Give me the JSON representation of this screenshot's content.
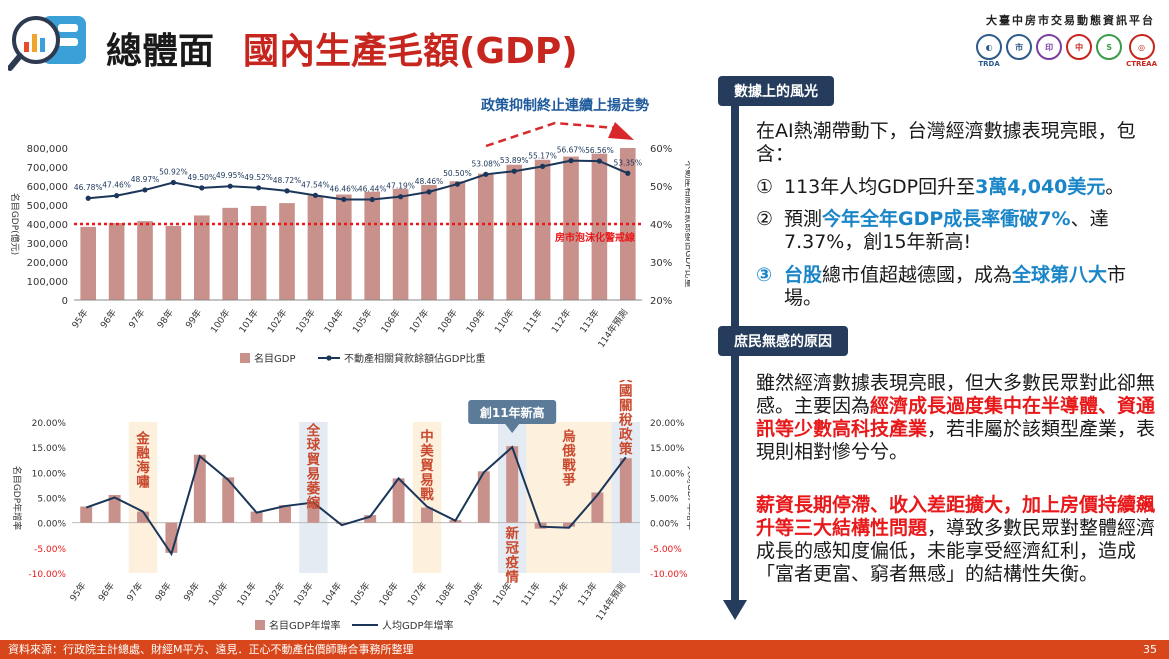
{
  "header": {
    "title_main": "總體面",
    "title_sub": "國內生產毛額(GDP)",
    "org_name": "大臺中房市交易動態資訊平台",
    "logos": [
      {
        "name": "trda",
        "label": "TRDA"
      },
      {
        "name": "hall",
        "label": "市"
      },
      {
        "name": "seal",
        "label": "印"
      },
      {
        "name": "zhong",
        "label": "中"
      },
      {
        "name": "sign",
        "label": "S"
      },
      {
        "name": "ctreaa",
        "label": "CTREAA"
      }
    ],
    "colors": {
      "brand_red": "#c7261f",
      "navy": "#253c5c",
      "accent_blue": "#1a86c8"
    }
  },
  "chart_data": [
    {
      "type": "bar+line",
      "title": "政策抑制終止連續上揚走勢",
      "categories": [
        "95年",
        "96年",
        "97年",
        "98年",
        "99年",
        "100年",
        "101年",
        "102年",
        "103年",
        "104年",
        "105年",
        "106年",
        "107年",
        "108年",
        "109年",
        "110年",
        "111年",
        "112年",
        "113年",
        "114年預測"
      ],
      "series": [
        {
          "name": "名目GDP",
          "type": "bar",
          "axis": "left",
          "values": [
            385000,
            405000,
            415000,
            390000,
            445000,
            485000,
            495000,
            510000,
            550000,
            555000,
            570000,
            585000,
            605000,
            625000,
            665000,
            712000,
            738000,
            755000,
            770000,
            800000
          ]
        },
        {
          "name": "不動產相關貸款餘額佔GDP比重",
          "type": "line",
          "axis": "right",
          "values": [
            46.78,
            47.46,
            48.97,
            50.92,
            49.5,
            49.95,
            49.52,
            48.72,
            47.54,
            46.46,
            46.44,
            47.19,
            48.46,
            50.5,
            53.08,
            53.89,
            55.17,
            56.67,
            56.56,
            53.35
          ],
          "labels": [
            "46.78%",
            "47.46%",
            "48.97%",
            "50.92%",
            "49.50%",
            "49.95%",
            "49.52%",
            "48.72%",
            "47.54%",
            "46.46%",
            "46.44%",
            "47.19%",
            "48.46%",
            "50.50%",
            "53.08%",
            "53.89%",
            "55.17%",
            "56.67%",
            "56.56%",
            "53.35%"
          ]
        }
      ],
      "ylabel": "名目GDP(億元)",
      "ylabel_right": "不動產相關貸款餘額佔GDP比重",
      "ylim": [
        0,
        800000
      ],
      "yticks": [
        "0",
        "100,000",
        "200,000",
        "300,000",
        "400,000",
        "500,000",
        "600,000",
        "700,000",
        "800,000"
      ],
      "ylim_right": [
        20,
        60
      ],
      "yticks_right": [
        "20%",
        "30%",
        "40%",
        "50%",
        "60%"
      ],
      "threshold": {
        "value": 40,
        "axis": "right",
        "label": "房市泡沫化警戒線"
      },
      "legend": [
        "名目GDP",
        "不動產相關貸款餘額佔GDP比重"
      ],
      "legend_placement": "bottom-center"
    },
    {
      "type": "bar+line",
      "categories": [
        "95年",
        "96年",
        "97年",
        "98年",
        "99年",
        "100年",
        "101年",
        "102年",
        "103年",
        "104年",
        "105年",
        "106年",
        "107年",
        "108年",
        "109年",
        "110年",
        "111年",
        "112年",
        "113年",
        "114年預測"
      ],
      "series": [
        {
          "name": "名目GDP年增率",
          "type": "bar",
          "axis": "left",
          "values": [
            3.2,
            5.5,
            2.2,
            -6.0,
            13.5,
            9.0,
            2.2,
            3.5,
            4.3,
            -0.2,
            1.5,
            8.8,
            3.0,
            0.5,
            10.2,
            15.2,
            -1.2,
            -0.8,
            6.0,
            12.8
          ]
        },
        {
          "name": "人均GDP年增率",
          "type": "line",
          "axis": "right",
          "values": [
            3.0,
            5.0,
            2.2,
            -6.2,
            13.2,
            8.5,
            2.0,
            3.3,
            4.0,
            -0.5,
            1.2,
            8.8,
            3.2,
            0.4,
            10.0,
            15.0,
            -0.8,
            -1.0,
            5.5,
            13.0
          ]
        }
      ],
      "ylabel": "名目GDP年增率",
      "ylabel_right": "人均GDP年增率",
      "ylim": [
        -10,
        20
      ],
      "yticks": [
        "-10.00%",
        "-5.00%",
        "0.00%",
        "5.00%",
        "10.00%",
        "15.00%",
        "20.00%"
      ],
      "yticks_right": [
        "-10.00%",
        "-5.00%",
        "0.00%",
        "5.00%",
        "10.00%",
        "15.00%",
        "20.00%"
      ],
      "annotations": [
        {
          "text": "金融海嘯",
          "category_index": 2
        },
        {
          "text": "全球貿易萎縮",
          "category_index": 8
        },
        {
          "text": "中美貿易戰",
          "category_index": 12
        },
        {
          "text": "新冠疫情",
          "category_index": 15
        },
        {
          "text": "烏俄戰爭",
          "category_index": 17
        },
        {
          "text": "美國關稅政策",
          "category_index": 19
        }
      ],
      "callout": {
        "text": "創11年新高",
        "category_index": 15
      },
      "legend": [
        "名目GDP年增率",
        "人均GDP年增率"
      ],
      "legend_placement": "bottom-center"
    }
  ],
  "right": {
    "section1_label": "數據上的風光",
    "section1_intro": "在AI熱潮帶動下，台灣經濟數據表現亮眼，包含：",
    "items": [
      {
        "num": "①",
        "pre": "113年人均GDP回升至",
        "hl": "3萬4,040美元",
        "post": "。"
      },
      {
        "num": "②",
        "pre": "預測",
        "hl": "今年全年GDP成長率衝破7%",
        "post": "、達7.37%，創15年新高!"
      },
      {
        "num": "③",
        "hl1": "台股",
        "mid": "總市值超越德國，成為",
        "hl2": "全球第八大",
        "post": "市場。"
      }
    ],
    "section2_label": "庶民無感的原因",
    "para1_pre": "雖然經濟數據表現亮眼，但大多數民眾對此卻無感。主要因為",
    "para1_hl": "經濟成長過度集中在半導體、資通訊等少數高科技產業",
    "para1_post": "，若非屬於該類型產業，表現則相對慘兮兮。",
    "para2_hl": "薪資長期停滯、收入差距擴大，加上房價持續飆升等三大結構性問題",
    "para2_post": "，導致多數民眾對整體經濟成長的感知度偏低，未能享受經濟紅利，造成「富者更富、窮者無感」的結構性失衡。"
  },
  "footer": {
    "source": "資料來源：行政院主計總處、財經M平方、遠見．正心不動產估價師聯合事務所整理",
    "page": "35"
  }
}
